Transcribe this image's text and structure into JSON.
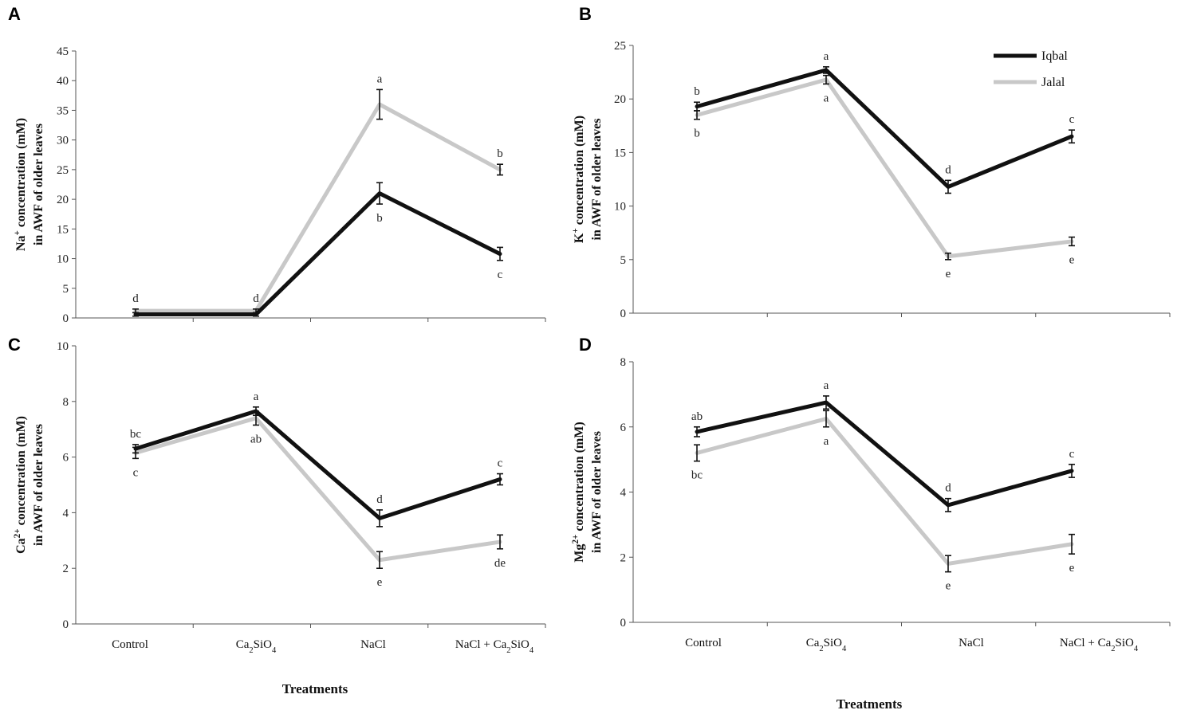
{
  "chart_data": [
    {
      "panel": "A",
      "type": "line",
      "categories": [
        "Control",
        "Ca2SiO4",
        "NaCl",
        "NaCl + Ca2SiO4"
      ],
      "ylabel_line1": "Na+ concentration (mM)",
      "ylabel_line2": "in AWF of older leaves",
      "ylim": [
        0,
        45
      ],
      "yticks": [
        0,
        5,
        10,
        15,
        20,
        25,
        30,
        35,
        40,
        45
      ],
      "series": [
        {
          "name": "Iqbal",
          "values": [
            0.6,
            0.6,
            21,
            10.8
          ],
          "errors": [
            0.3,
            0.3,
            1.8,
            1.1
          ],
          "letters": [
            "",
            "",
            "b",
            "c"
          ]
        },
        {
          "name": "Jalal",
          "values": [
            1.2,
            1.2,
            36,
            25
          ],
          "errors": [
            0.3,
            0.3,
            2.5,
            0.9
          ],
          "letters": [
            "d",
            "d",
            "a",
            "b"
          ]
        }
      ]
    },
    {
      "panel": "B",
      "type": "line",
      "categories": [
        "Control",
        "Ca2SiO4",
        "NaCl",
        "NaCl + Ca2SiO4"
      ],
      "ylabel_line1": "K+ concentration (mM)",
      "ylabel_line2": "in AWF of older leaves",
      "ylim": [
        0,
        25
      ],
      "yticks": [
        0,
        5,
        10,
        15,
        20,
        25
      ],
      "series": [
        {
          "name": "Iqbal",
          "values": [
            19.3,
            22.7,
            11.8,
            16.5
          ],
          "errors": [
            0.4,
            0.3,
            0.6,
            0.6
          ],
          "letters": [
            "b",
            "a",
            "d",
            "c"
          ]
        },
        {
          "name": "Jalal",
          "values": [
            18.5,
            21.8,
            5.3,
            6.7
          ],
          "errors": [
            0.4,
            0.4,
            0.3,
            0.4
          ],
          "letters": [
            "b",
            "a",
            "e",
            "e"
          ]
        }
      ]
    },
    {
      "panel": "C",
      "type": "line",
      "categories": [
        "Control",
        "Ca2SiO4",
        "NaCl",
        "NaCl + Ca2SiO4"
      ],
      "ylabel_line1": "Ca2+ concentration (mM)",
      "ylabel_line2": "in AWF of older leaves",
      "ylim": [
        0,
        10
      ],
      "yticks": [
        0,
        2,
        4,
        6,
        8,
        10
      ],
      "series": [
        {
          "name": "Iqbal",
          "values": [
            6.3,
            7.65,
            3.8,
            5.2
          ],
          "errors": [
            0.15,
            0.15,
            0.3,
            0.2
          ],
          "letters": [
            "bc",
            "a",
            "d",
            "c"
          ]
        },
        {
          "name": "Jalal",
          "values": [
            6.15,
            7.4,
            2.3,
            2.95
          ],
          "errors": [
            0.2,
            0.25,
            0.3,
            0.25
          ],
          "letters": [
            "c",
            "ab",
            "e",
            "de"
          ]
        }
      ]
    },
    {
      "panel": "D",
      "type": "line",
      "categories": [
        "Control",
        "Ca2SiO4",
        "NaCl",
        "NaCl + Ca2SiO4"
      ],
      "ylabel_line1": "Mg2+ concentration (mM)",
      "ylabel_line2": "in AWF of older leaves",
      "ylim": [
        0,
        8
      ],
      "yticks": [
        0,
        2,
        4,
        6,
        8
      ],
      "series": [
        {
          "name": "Iqbal",
          "values": [
            5.85,
            6.75,
            3.6,
            4.65
          ],
          "errors": [
            0.15,
            0.2,
            0.2,
            0.2
          ],
          "letters": [
            "ab",
            "a",
            "d",
            "c"
          ]
        },
        {
          "name": "Jalal",
          "values": [
            5.2,
            6.25,
            1.8,
            2.4
          ],
          "errors": [
            0.25,
            0.25,
            0.25,
            0.3
          ],
          "letters": [
            "bc",
            "a",
            "e",
            "e"
          ]
        }
      ]
    }
  ],
  "xlabel": "Treatments",
  "legend": [
    {
      "name": "Iqbal",
      "color": "#111111"
    },
    {
      "name": "Jalal",
      "color": "#c8c8c8"
    }
  ],
  "series_colors": {
    "Iqbal": "#111111",
    "Jalal": "#c8c8c8"
  }
}
